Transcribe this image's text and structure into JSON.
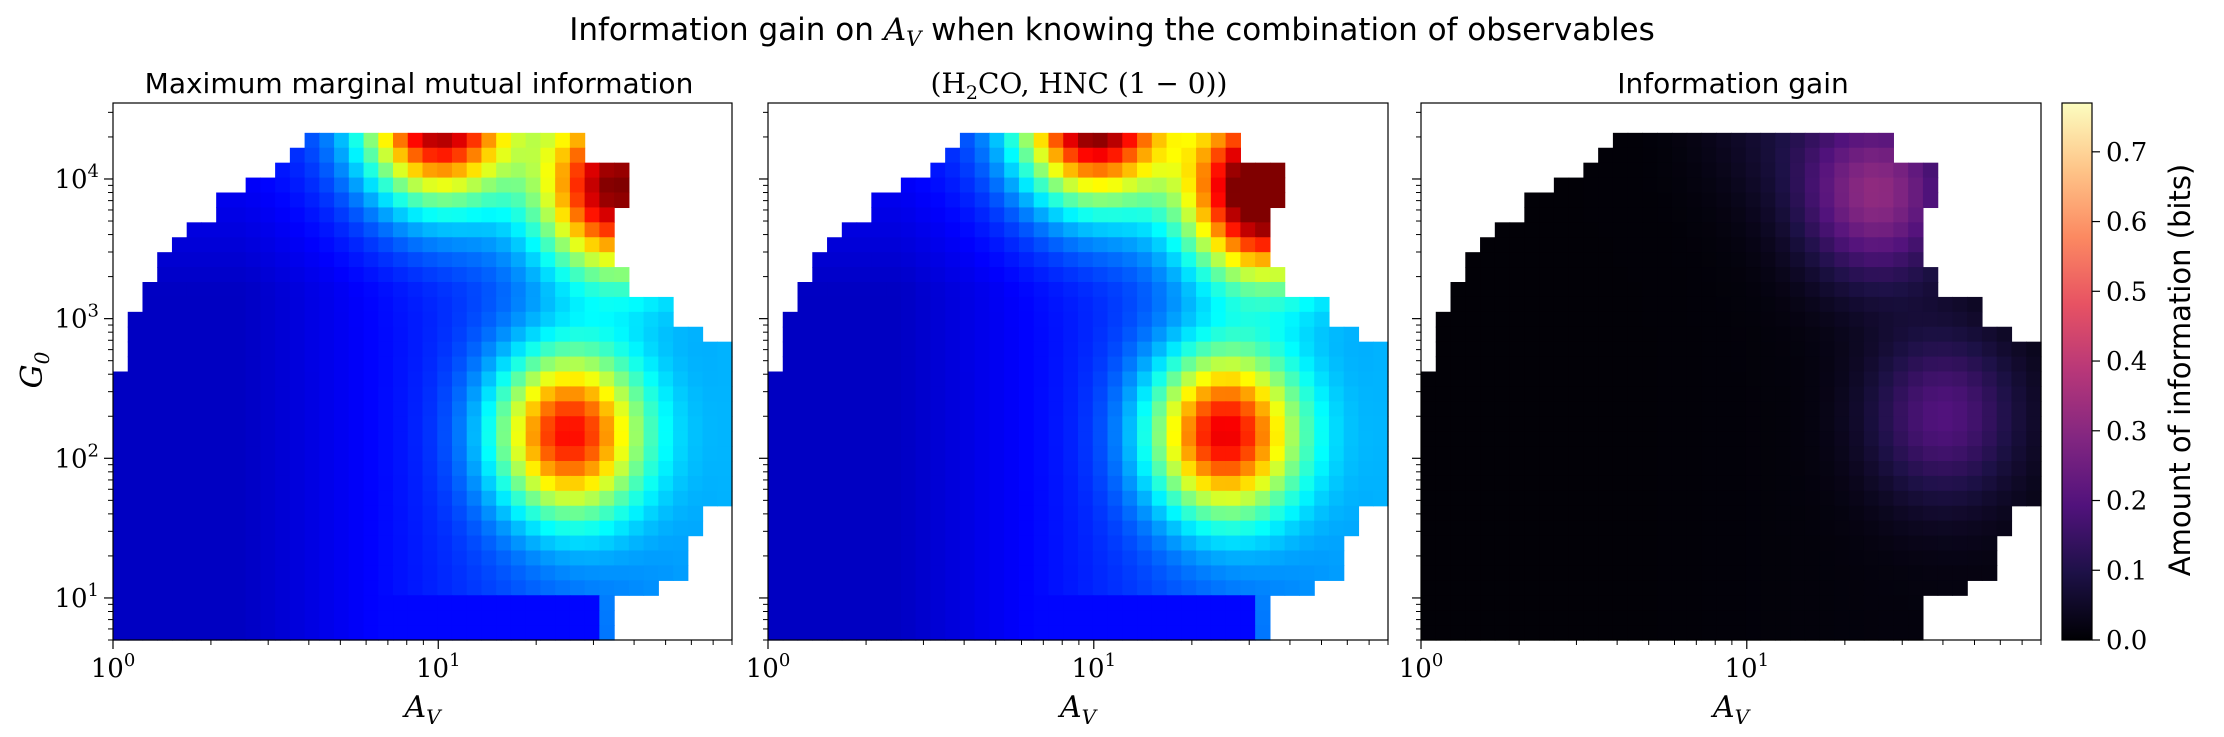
{
  "figure": {
    "suptitle_prefix": "Information gain on ",
    "suptitle_var_main": "A",
    "suptitle_var_sub": "V",
    "suptitle_suffix": " when knowing the combination of observables"
  },
  "colors": {
    "nan_background": "#ffffff",
    "jet_cmap": [
      "#000080",
      "#0000ff",
      "#0080ff",
      "#00ffff",
      "#80ff80",
      "#ffff00",
      "#ff8000",
      "#ff0000",
      "#800000"
    ],
    "magma_cmap": [
      "#000004",
      "#1d1147",
      "#51127c",
      "#822681",
      "#b73779",
      "#e75263",
      "#fc8961",
      "#fec488",
      "#fcfdbf"
    ]
  },
  "chart_data": [
    {
      "type": "heatmap",
      "title": "Maximum marginal mutual information",
      "xlabel_main": "A",
      "xlabel_sub": "V",
      "ylabel_main": "G",
      "ylabel_sub": "0",
      "xscale": "log",
      "yscale": "log",
      "xlim": [
        1,
        80
      ],
      "ylim": [
        5,
        35000
      ],
      "x_ticks": [
        {
          "value": 1,
          "base": "10",
          "exp": "0"
        },
        {
          "value": 10,
          "base": "10",
          "exp": "1"
        }
      ],
      "y_ticks": [
        {
          "value": 10,
          "base": "10",
          "exp": "1"
        },
        {
          "value": 100,
          "base": "10",
          "exp": "2"
        },
        {
          "value": 1000,
          "base": "10",
          "exp": "3"
        },
        {
          "value": 10000,
          "base": "10",
          "exp": "4"
        }
      ],
      "colormap": "jet",
      "vmin": 0,
      "vmax": 0.77,
      "value_unit": "bits",
      "peaks": [
        {
          "Av": 10,
          "G0": 28000,
          "value": 0.6
        },
        {
          "Av": 35,
          "G0": 8500,
          "value": 0.55
        },
        {
          "Av": 25,
          "G0": 150,
          "value": 0.5
        }
      ]
    },
    {
      "type": "heatmap",
      "title_open": "(H",
      "title_sub": "2",
      "title_close": "CO, HNC (1 − 0))",
      "xlabel_main": "A",
      "xlabel_sub": "V",
      "xscale": "log",
      "yscale": "log",
      "xlim": [
        1,
        80
      ],
      "ylim": [
        5,
        35000
      ],
      "x_ticks": [
        {
          "value": 1,
          "base": "10",
          "exp": "0"
        },
        {
          "value": 10,
          "base": "10",
          "exp": "1"
        }
      ],
      "y_ticks": [
        {
          "value": 10
        },
        {
          "value": 100
        },
        {
          "value": 1000
        },
        {
          "value": 10000
        }
      ],
      "colormap": "jet",
      "vmin": 0,
      "vmax": 0.77,
      "value_unit": "bits",
      "peaks": [
        {
          "Av": 10,
          "G0": 28000,
          "value": 0.63
        },
        {
          "Av": 33,
          "G0": 8000,
          "value": 0.66
        },
        {
          "Av": 25,
          "G0": 150,
          "value": 0.52
        }
      ]
    },
    {
      "type": "heatmap",
      "title": "Information gain",
      "xlabel_main": "A",
      "xlabel_sub": "V",
      "xscale": "log",
      "yscale": "log",
      "xlim": [
        1,
        80
      ],
      "ylim": [
        5,
        35000
      ],
      "x_ticks": [
        {
          "value": 1,
          "base": "10",
          "exp": "0"
        },
        {
          "value": 10,
          "base": "10",
          "exp": "1"
        }
      ],
      "y_ticks": [
        {
          "value": 10
        },
        {
          "value": 100
        },
        {
          "value": 1000
        },
        {
          "value": 10000
        }
      ],
      "colormap": "magma",
      "vmin": 0,
      "vmax": 0.77,
      "value_unit": "bits",
      "peaks": [
        {
          "Av": 25,
          "G0": 8000,
          "value": 0.3
        },
        {
          "Av": 40,
          "G0": 200,
          "value": 0.18
        },
        {
          "Av": 12,
          "G0": 28000,
          "value": 0.05
        }
      ]
    }
  ],
  "colorbar": {
    "label": "Amount of information (bits)",
    "colormap": "magma",
    "vmin": 0,
    "vmax": 0.77,
    "ticks": [
      "0.0",
      "0.1",
      "0.2",
      "0.3",
      "0.4",
      "0.5",
      "0.6",
      "0.7"
    ]
  }
}
